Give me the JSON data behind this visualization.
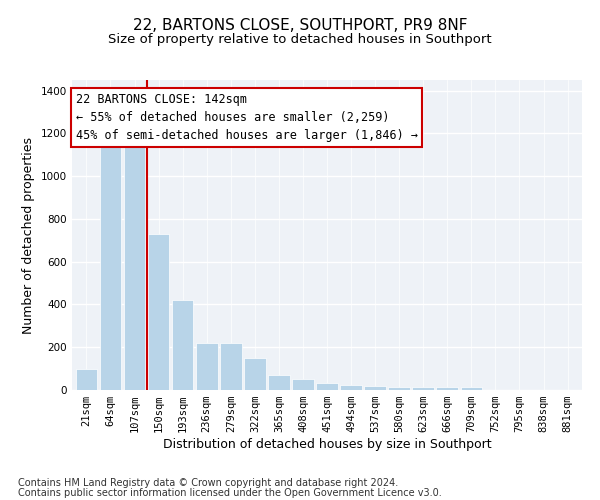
{
  "title_line1": "22, BARTONS CLOSE, SOUTHPORT, PR9 8NF",
  "title_line2": "Size of property relative to detached houses in Southport",
  "xlabel": "Distribution of detached houses by size in Southport",
  "ylabel": "Number of detached properties",
  "categories": [
    "21sqm",
    "64sqm",
    "107sqm",
    "150sqm",
    "193sqm",
    "236sqm",
    "279sqm",
    "322sqm",
    "365sqm",
    "408sqm",
    "451sqm",
    "494sqm",
    "537sqm",
    "580sqm",
    "623sqm",
    "666sqm",
    "709sqm",
    "752sqm",
    "795sqm",
    "838sqm",
    "881sqm"
  ],
  "values": [
    100,
    1160,
    1160,
    730,
    420,
    220,
    220,
    150,
    70,
    52,
    33,
    22,
    18,
    15,
    13,
    13,
    13,
    0,
    0,
    0,
    0
  ],
  "bar_color": "#b8d4e8",
  "vline_color": "#cc0000",
  "vline_x": 2.5,
  "annotation_line1": "22 BARTONS CLOSE: 142sqm",
  "annotation_line2": "← 55% of detached houses are smaller (2,259)",
  "annotation_line3": "45% of semi-detached houses are larger (1,846) →",
  "annotation_box_edgecolor": "#cc0000",
  "ylim": [
    0,
    1450
  ],
  "yticks": [
    0,
    200,
    400,
    600,
    800,
    1000,
    1200,
    1400
  ],
  "bg_color": "#eef2f7",
  "footnote_line1": "Contains HM Land Registry data © Crown copyright and database right 2024.",
  "footnote_line2": "Contains public sector information licensed under the Open Government Licence v3.0.",
  "title_fontsize": 11,
  "subtitle_fontsize": 9.5,
  "axis_label_fontsize": 9,
  "tick_fontsize": 7.5,
  "annotation_fontsize": 8.5,
  "footnote_fontsize": 7
}
